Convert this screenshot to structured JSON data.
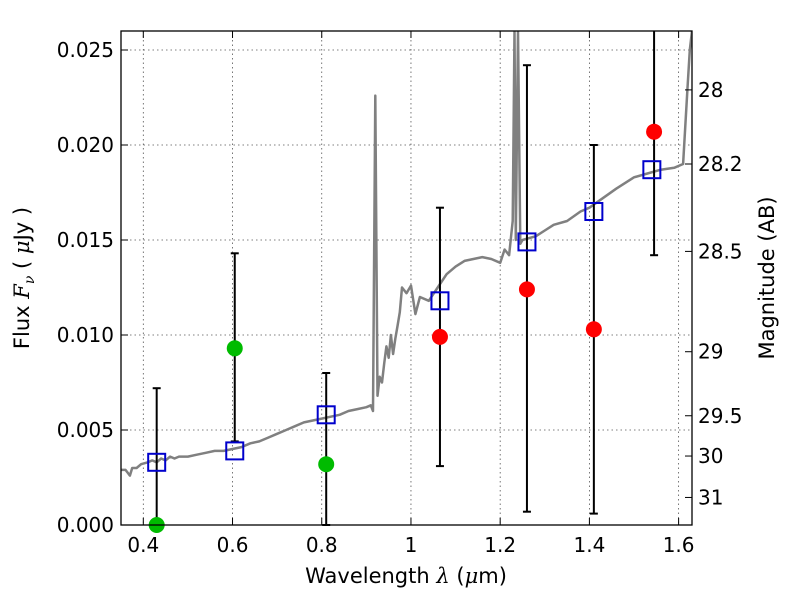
{
  "chart_data": {
    "type": "scatter",
    "xlabel": {
      "text": "Wavelength",
      "symbol": "λ",
      "unit_open": "(",
      "unit_mu": "μ",
      "unit_rest": "m)"
    },
    "ylabel": {
      "text": "Flux",
      "symbol": "F",
      "sub": "ν",
      "unit_open": "(",
      "unit_mu": "μ",
      "unit_rest": "Jy )"
    },
    "y2label": "Magnitude (AB)",
    "xlim": [
      0.35,
      1.63
    ],
    "ylim": [
      0.0,
      0.026
    ],
    "grid": true,
    "x_ticks": [
      {
        "value": 0.4,
        "label": "0.4"
      },
      {
        "value": 0.6,
        "label": "0.6"
      },
      {
        "value": 0.8,
        "label": "0.8"
      },
      {
        "value": 1.0,
        "label": "1"
      },
      {
        "value": 1.2,
        "label": "1.2"
      },
      {
        "value": 1.4,
        "label": "1.4"
      },
      {
        "value": 1.6,
        "label": "1.6"
      }
    ],
    "y_ticks": [
      {
        "value": 0.0,
        "label": "0.000"
      },
      {
        "value": 0.005,
        "label": "0.005"
      },
      {
        "value": 0.01,
        "label": "0.010"
      },
      {
        "value": 0.015,
        "label": "0.015"
      },
      {
        "value": 0.02,
        "label": "0.020"
      },
      {
        "value": 0.025,
        "label": "0.025"
      }
    ],
    "mag_ticks": [
      {
        "label": "28",
        "flux": 0.0229
      },
      {
        "label": "28.2",
        "flux": 0.019
      },
      {
        "label": "28.5",
        "flux": 0.0144
      },
      {
        "label": "29",
        "flux": 0.00912
      },
      {
        "label": "29.5",
        "flux": 0.00575
      },
      {
        "label": "30",
        "flux": 0.00363
      },
      {
        "label": "31",
        "flux": 0.00145
      }
    ],
    "colors": {
      "spectrum": "#808080",
      "model": "#0000cc",
      "detection": "#ff0000",
      "optical": "#00bb00",
      "errorbar": "#000000",
      "grid": "#555555"
    },
    "spectrum": [
      [
        0.35,
        0.0029
      ],
      [
        0.36,
        0.0029
      ],
      [
        0.37,
        0.0026
      ],
      [
        0.375,
        0.003
      ],
      [
        0.385,
        0.003
      ],
      [
        0.395,
        0.0032
      ],
      [
        0.41,
        0.0033
      ],
      [
        0.42,
        0.0034
      ],
      [
        0.43,
        0.0033
      ],
      [
        0.44,
        0.0035
      ],
      [
        0.45,
        0.0034
      ],
      [
        0.46,
        0.0036
      ],
      [
        0.47,
        0.0035
      ],
      [
        0.48,
        0.0036
      ],
      [
        0.5,
        0.0036
      ],
      [
        0.52,
        0.0037
      ],
      [
        0.54,
        0.0038
      ],
      [
        0.56,
        0.0039
      ],
      [
        0.58,
        0.0039
      ],
      [
        0.6,
        0.004
      ],
      [
        0.62,
        0.0041
      ],
      [
        0.64,
        0.0043
      ],
      [
        0.66,
        0.0044
      ],
      [
        0.68,
        0.0046
      ],
      [
        0.7,
        0.0048
      ],
      [
        0.72,
        0.005
      ],
      [
        0.74,
        0.0052
      ],
      [
        0.76,
        0.0054
      ],
      [
        0.78,
        0.0055
      ],
      [
        0.8,
        0.0056
      ],
      [
        0.82,
        0.0057
      ],
      [
        0.84,
        0.0058
      ],
      [
        0.86,
        0.006
      ],
      [
        0.88,
        0.0061
      ],
      [
        0.9,
        0.0062
      ],
      [
        0.91,
        0.0063
      ],
      [
        0.915,
        0.006
      ],
      [
        0.92,
        0.0226
      ],
      [
        0.925,
        0.0068
      ],
      [
        0.93,
        0.0078
      ],
      [
        0.935,
        0.0075
      ],
      [
        0.94,
        0.0085
      ],
      [
        0.945,
        0.0094
      ],
      [
        0.95,
        0.0088
      ],
      [
        0.955,
        0.01
      ],
      [
        0.96,
        0.009
      ],
      [
        0.965,
        0.0098
      ],
      [
        0.97,
        0.0105
      ],
      [
        0.975,
        0.0112
      ],
      [
        0.98,
        0.0125
      ],
      [
        0.99,
        0.0122
      ],
      [
        1.0,
        0.0126
      ],
      [
        1.01,
        0.0111
      ],
      [
        1.02,
        0.012
      ],
      [
        1.04,
        0.0118
      ],
      [
        1.06,
        0.0125
      ],
      [
        1.08,
        0.0132
      ],
      [
        1.1,
        0.0136
      ],
      [
        1.12,
        0.0139
      ],
      [
        1.14,
        0.014
      ],
      [
        1.16,
        0.0141
      ],
      [
        1.18,
        0.014
      ],
      [
        1.2,
        0.0138
      ],
      [
        1.21,
        0.0145
      ],
      [
        1.22,
        0.0142
      ],
      [
        1.228,
        0.016
      ],
      [
        1.232,
        0.026
      ],
      [
        1.235,
        0.015
      ],
      [
        1.24,
        0.026
      ],
      [
        1.245,
        0.0148
      ],
      [
        1.25,
        0.015
      ],
      [
        1.28,
        0.0152
      ],
      [
        1.3,
        0.0155
      ],
      [
        1.32,
        0.0158
      ],
      [
        1.35,
        0.016
      ],
      [
        1.38,
        0.0165
      ],
      [
        1.4,
        0.0167
      ],
      [
        1.43,
        0.0172
      ],
      [
        1.46,
        0.0177
      ],
      [
        1.5,
        0.0183
      ],
      [
        1.53,
        0.0185
      ],
      [
        1.56,
        0.0187
      ],
      [
        1.59,
        0.0188
      ],
      [
        1.61,
        0.019
      ],
      [
        1.615,
        0.021
      ],
      [
        1.62,
        0.023
      ],
      [
        1.625,
        0.025
      ],
      [
        1.63,
        0.026
      ]
    ],
    "model_points": [
      {
        "x": 0.43,
        "y": 0.0033
      },
      {
        "x": 0.605,
        "y": 0.0039
      },
      {
        "x": 0.81,
        "y": 0.0058
      },
      {
        "x": 1.065,
        "y": 0.0118
      },
      {
        "x": 1.26,
        "y": 0.0149
      },
      {
        "x": 1.41,
        "y": 0.0165
      },
      {
        "x": 1.54,
        "y": 0.0187
      }
    ],
    "detections": [
      {
        "x": 1.065,
        "y": 0.0099,
        "ylo": 0.0031,
        "yhi": 0.0167
      },
      {
        "x": 1.26,
        "y": 0.0124,
        "ylo": 0.0007,
        "yhi": 0.0242
      },
      {
        "x": 1.41,
        "y": 0.0103,
        "ylo": 0.0006,
        "yhi": 0.02
      },
      {
        "x": 1.545,
        "y": 0.0207,
        "ylo": 0.0142,
        "yhi": 0.0272
      }
    ],
    "optical_points": [
      {
        "x": 0.43,
        "y": 0.0,
        "ylo": 0.0,
        "yhi": 0.0072
      },
      {
        "x": 0.605,
        "y": 0.0093,
        "ylo": 0.0044,
        "yhi": 0.0143
      },
      {
        "x": 0.81,
        "y": 0.0032,
        "ylo": 0.0,
        "yhi": 0.008
      }
    ]
  }
}
